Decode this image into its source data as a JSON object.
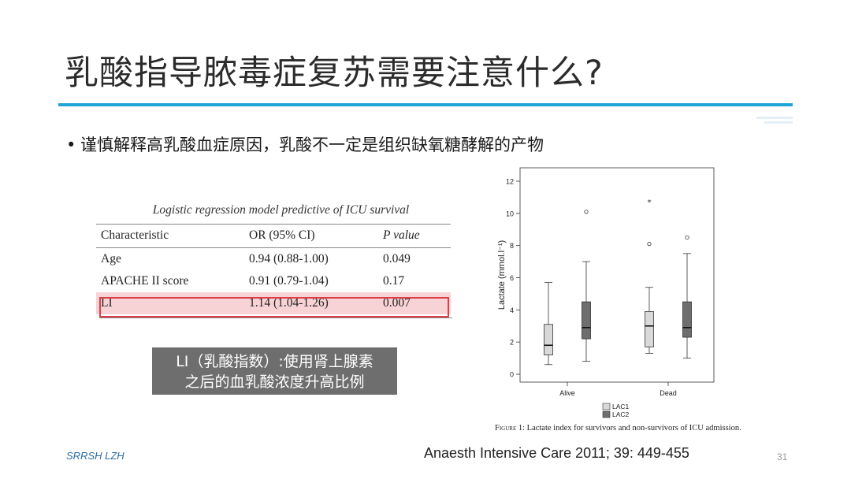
{
  "slide": {
    "title": "乳酸指导脓毒症复苏需要注意什么?",
    "bullet": "谨慎解释高乳酸血症原因，乳酸不一定是组织缺氧糖酵解的产物",
    "accent_color": "#1fa5d8"
  },
  "table": {
    "caption": "Logistic regression model predictive of ICU survival",
    "headers": [
      "Characteristic",
      "OR (95% CI)",
      "P value"
    ],
    "rows": [
      [
        "Age",
        "0.94 (0.88-1.00)",
        "0.049"
      ],
      [
        "APACHE II score",
        "0.91 (0.79-1.04)",
        "0.17"
      ],
      [
        "LI",
        "1.14 (1.04-1.26)",
        "0.007"
      ]
    ],
    "highlight_color": "#d9404a"
  },
  "note": {
    "line1": "LI（乳酸指数）:使用肾上腺素",
    "line2": "之后的血乳酸浓度升高比例"
  },
  "chart_data": {
    "type": "boxplot",
    "ylabel": "Lactate (mmol.l⁻¹)",
    "ylim": [
      0,
      12
    ],
    "yticks": [
      0,
      2,
      4,
      6,
      8,
      10,
      12
    ],
    "categories": [
      "Alive",
      "Dead"
    ],
    "legend": [
      "LAC1",
      "LAC2"
    ],
    "legend_placement": "bottom",
    "series": [
      {
        "name": "LAC1",
        "color": "#d9d9d9",
        "boxes": [
          {
            "category": "Alive",
            "min": 0.6,
            "q1": 1.2,
            "median": 1.8,
            "q3": 3.1,
            "max": 5.7,
            "outliers": []
          },
          {
            "category": "Dead",
            "min": 1.3,
            "q1": 1.7,
            "median": 3.0,
            "q3": 3.9,
            "max": 5.4,
            "outliers": [
              8.1
            ],
            "extremes": [
              10.7
            ]
          }
        ]
      },
      {
        "name": "LAC2",
        "color": "#6e6e6e",
        "boxes": [
          {
            "category": "Alive",
            "min": 0.8,
            "q1": 2.2,
            "median": 2.9,
            "q3": 4.5,
            "max": 7.0,
            "outliers": [
              10.1
            ]
          },
          {
            "category": "Dead",
            "min": 1.0,
            "q1": 2.3,
            "median": 2.9,
            "q3": 4.5,
            "max": 7.5,
            "outliers": [
              8.5
            ]
          }
        ]
      }
    ]
  },
  "figure_caption": {
    "label": "Figure 1:",
    "text": "Lactate index for survivors and non-survivors of ICU admission."
  },
  "footer": {
    "left": "SRRSH LZH",
    "reference": "Anaesth Intensive Care 2011; 39: 449-455",
    "page": "31"
  }
}
